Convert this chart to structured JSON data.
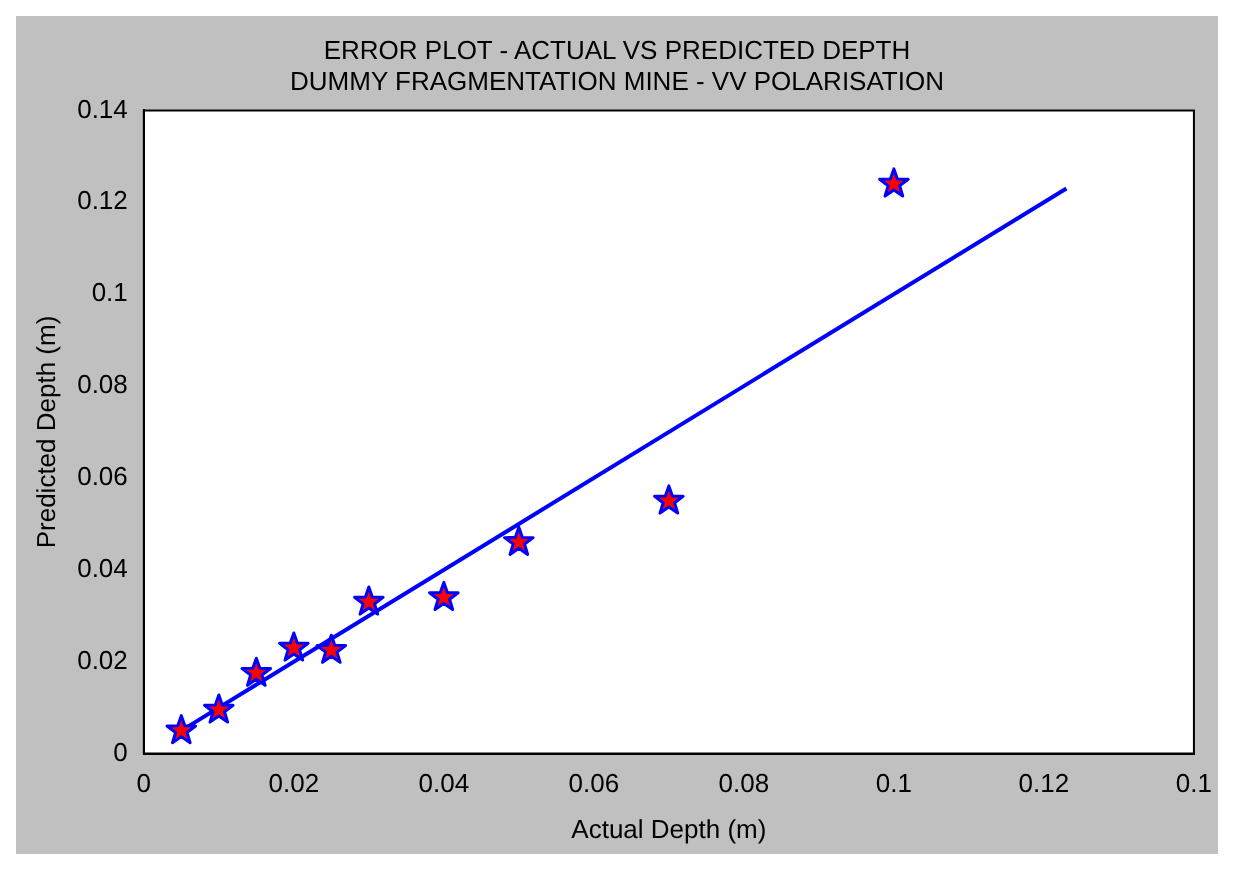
{
  "chart_data": {
    "type": "scatter",
    "title": [
      "ERROR PLOT - ACTUAL VS PREDICTED DEPTH",
      "DUMMY FRAGMENTATION MINE - VV POLARISATION"
    ],
    "xlabel": "Actual Depth (m)",
    "ylabel": "Predicted Depth (m)",
    "xlim": [
      0,
      0.14
    ],
    "xticks": [
      0,
      0.02,
      0.04,
      0.06,
      0.08,
      0.1,
      0.12,
      {
        "value": 0.14,
        "label": "0.1"
      }
    ],
    "ylim": [
      0,
      0.14
    ],
    "yticks": [
      0,
      0.02,
      0.04,
      0.06,
      0.08,
      0.1,
      0.12,
      0.14
    ],
    "grid": false,
    "legend": false,
    "series": [
      {
        "marker": "star",
        "color": "#ff0000",
        "x": [
          0.005,
          0.01,
          0.015,
          0.02,
          0.025,
          0.03,
          0.04,
          0.05,
          0.07,
          0.1
        ],
        "values": [
          0.005,
          0.0095,
          0.0175,
          0.023,
          0.0225,
          0.033,
          0.034,
          0.046,
          0.055,
          0.124
        ]
      },
      {
        "type": "line",
        "marker": "none",
        "line_style": "solid",
        "color": "#0000ff",
        "x": [
          0.005,
          0.123
        ],
        "values": [
          0.005,
          0.123
        ]
      }
    ]
  }
}
